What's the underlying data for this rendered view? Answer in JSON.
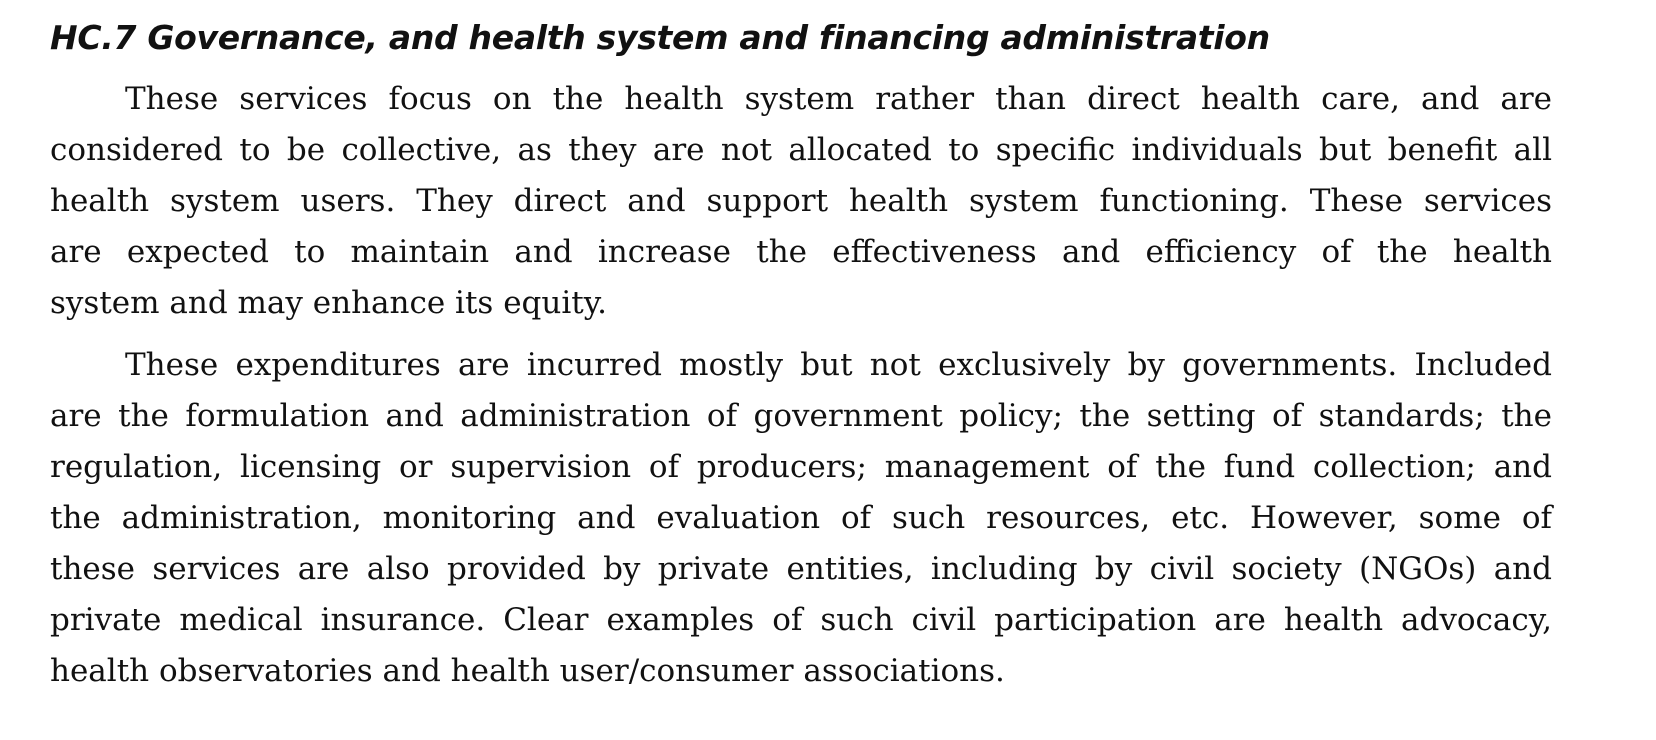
{
  "heading": "HC.7 Governance, and health system and financing administration",
  "paragraphs": [
    {
      "lines": [
        "These services focus on the health system rather than direct health care, and are",
        "considered to be collective, as they are not allocated to specific individuals but benefit all",
        "health system users. They direct and support health system functioning. These services",
        "are expected to maintain and increase the effectiveness and efficiency of the health",
        "system and may enhance its equity."
      ]
    },
    {
      "lines": [
        "These expenditures are incurred mostly but not exclusively by governments. Included",
        "are the formulation and administration of government policy; the setting of standards; the",
        "regulation, licensing or supervision of producers; management of the fund collection; and",
        "the administration, monitoring and evaluation of such resources, etc. However, some of",
        "these services are also provided by private entities, including by civil society (NGOs) and",
        "private medical insurance. Clear examples of such civil participation are health advocacy,",
        "health observatories and health user/consumer associations."
      ]
    }
  ]
}
